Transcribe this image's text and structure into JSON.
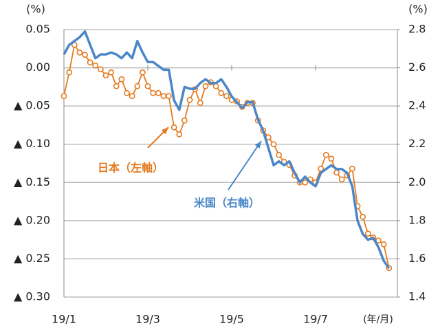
{
  "chart_data": {
    "type": "line",
    "x": [
      1,
      1.125,
      1.25,
      1.375,
      1.5,
      1.625,
      1.75,
      1.875,
      2,
      2.125,
      2.25,
      2.375,
      2.5,
      2.625,
      2.75,
      2.875,
      3,
      3.125,
      3.25,
      3.375,
      3.5,
      3.625,
      3.75,
      3.875,
      4,
      4.125,
      4.25,
      4.375,
      4.5,
      4.625,
      4.75,
      4.875,
      5,
      5.125,
      5.25,
      5.375,
      5.5,
      5.625,
      5.75,
      5.875,
      6,
      6.125,
      6.25,
      6.375,
      6.5,
      6.625,
      6.75,
      6.875,
      7,
      7.125,
      7.25,
      7.375,
      7.5,
      7.625,
      7.75,
      7.875,
      8,
      8.125,
      8.25,
      8.375,
      8.5,
      8.625,
      8.75
    ],
    "xlim": [
      1,
      8.95
    ],
    "xticks": [
      {
        "value": 1,
        "label": "19/1"
      },
      {
        "value": 3,
        "label": "19/3"
      },
      {
        "value": 5,
        "label": "19/5"
      },
      {
        "value": 7,
        "label": "19/7"
      }
    ],
    "x_label": "(年/月)",
    "y_label": "(%)",
    "ylim": [
      -0.3,
      0.05
    ],
    "yticks": [
      {
        "value": 0.05,
        "label": "0.05"
      },
      {
        "value": 0,
        "label": "0.00"
      },
      {
        "value": -0.05,
        "label": "▲ 0.05"
      },
      {
        "value": -0.1,
        "label": "▲ 0.10"
      },
      {
        "value": -0.15,
        "label": "▲ 0.15"
      },
      {
        "value": -0.2,
        "label": "▲ 0.20"
      },
      {
        "value": -0.25,
        "label": "▲ 0.25"
      },
      {
        "value": -0.3,
        "label": "▲ 0.30"
      }
    ],
    "y2_label": "(%)",
    "y2lim": [
      1.4,
      2.8
    ],
    "y2ticks": [
      2.8,
      2.6,
      2.4,
      2.2,
      {
        "value": 2,
        "label": "2.0"
      },
      1.8,
      1.6,
      1.4
    ],
    "grid": true,
    "series": [
      {
        "name": "日本（左軸）",
        "color": "#e57a1e",
        "marker": "circle",
        "values": [
          -0.037,
          -0.006,
          0.03,
          0.02,
          0.017,
          0.007,
          0.003,
          -0.002,
          -0.01,
          -0.006,
          -0.024,
          -0.015,
          -0.033,
          -0.037,
          -0.024,
          -0.006,
          -0.024,
          -0.033,
          -0.033,
          -0.037,
          -0.037,
          -0.078,
          -0.087,
          -0.069,
          -0.042,
          -0.028,
          -0.046,
          -0.024,
          -0.019,
          -0.024,
          -0.033,
          -0.037,
          -0.042,
          -0.044,
          -0.051,
          -0.046,
          -0.046,
          -0.069,
          -0.082,
          -0.091,
          -0.1,
          -0.114,
          -0.123,
          -0.127,
          -0.141,
          -0.15,
          -0.15,
          -0.146,
          -0.15,
          -0.132,
          -0.114,
          -0.119,
          -0.137,
          -0.146,
          -0.141,
          -0.132,
          -0.181,
          -0.195,
          -0.217,
          -0.222,
          -0.226,
          -0.231,
          -0.262
        ]
      },
      {
        "name": "米国（右軸）",
        "color": "#4a86c8",
        "axis": "y2",
        "values": [
          2.67,
          2.72,
          2.74,
          2.76,
          2.79,
          2.72,
          2.65,
          2.67,
          2.67,
          2.68,
          2.67,
          2.65,
          2.68,
          2.65,
          2.74,
          2.68,
          2.63,
          2.63,
          2.61,
          2.59,
          2.59,
          2.43,
          2.38,
          2.5,
          2.49,
          2.49,
          2.52,
          2.54,
          2.52,
          2.52,
          2.54,
          2.5,
          2.45,
          2.42,
          2.39,
          2.42,
          2.42,
          2.33,
          2.27,
          2.18,
          2.09,
          2.11,
          2.09,
          2.11,
          2.05,
          2.0,
          2.03,
          2.0,
          1.98,
          2.05,
          2.07,
          2.09,
          2.07,
          2.07,
          2.05,
          1.98,
          1.8,
          1.73,
          1.7,
          1.71,
          1.66,
          1.59,
          1.55
        ]
      }
    ]
  }
}
